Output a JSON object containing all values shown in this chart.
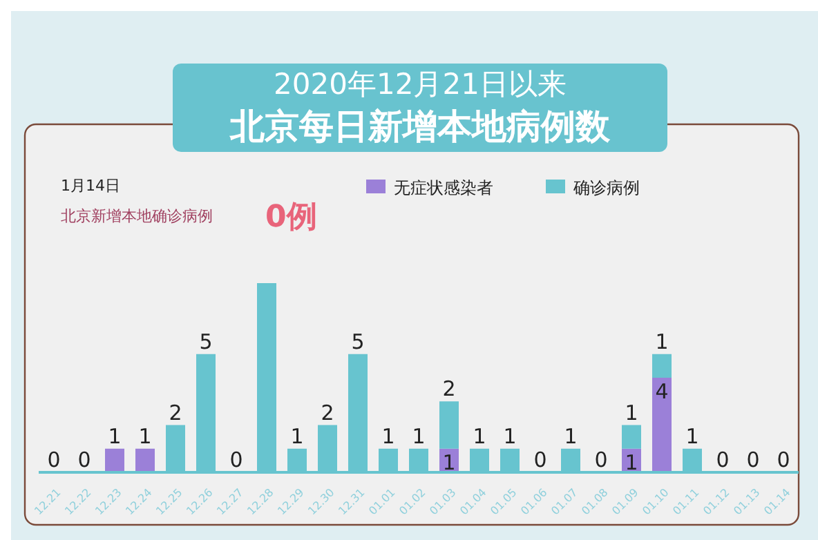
{
  "chart_data": {
    "type": "bar",
    "title": "2020年12月21日以来",
    "subtitle": "北京每日新增本地病例数",
    "categories": [
      "12.21",
      "12.22",
      "12.23",
      "12.24",
      "12.25",
      "12.26",
      "12.27",
      "12.28",
      "12.29",
      "12.30",
      "12.31",
      "01.01",
      "01.02",
      "01.03",
      "01.04",
      "01.05",
      "01.06",
      "01.07",
      "01.08",
      "01.09",
      "01.10",
      "01.11",
      "01.12",
      "01.13",
      "01.14"
    ],
    "stacked": true,
    "legend": "top right",
    "series": [
      {
        "name": "无症状感染者",
        "color": "#9b80d8",
        "values": [
          0,
          0,
          1,
          1,
          0,
          0,
          0,
          0,
          0,
          0,
          0,
          0,
          0,
          1,
          0,
          0,
          0,
          0,
          0,
          1,
          4,
          0,
          0,
          0,
          0
        ],
        "value_labels": [
          null,
          null,
          "1",
          "1",
          null,
          null,
          null,
          null,
          null,
          null,
          null,
          null,
          null,
          "1",
          null,
          null,
          null,
          null,
          null,
          "1",
          "4",
          null,
          null,
          null,
          null
        ]
      },
      {
        "name": "确诊病例",
        "color": "#67c4cf",
        "values": [
          0,
          0,
          0,
          0,
          2,
          5,
          0,
          8,
          1,
          2,
          5,
          1,
          1,
          2,
          1,
          1,
          0,
          1,
          0,
          1,
          1,
          1,
          0,
          0,
          0
        ],
        "value_labels": [
          "0",
          "0",
          null,
          null,
          "2",
          "5",
          "0",
          null,
          "1",
          "2",
          "5",
          "1",
          "1",
          "2",
          "1",
          "1",
          "0",
          "1",
          "0",
          "1",
          "1",
          "1",
          "0",
          "0",
          "0"
        ]
      }
    ],
    "annotations": [
      "1月14日",
      "北京新增本地确诊病例",
      "0例"
    ]
  }
}
